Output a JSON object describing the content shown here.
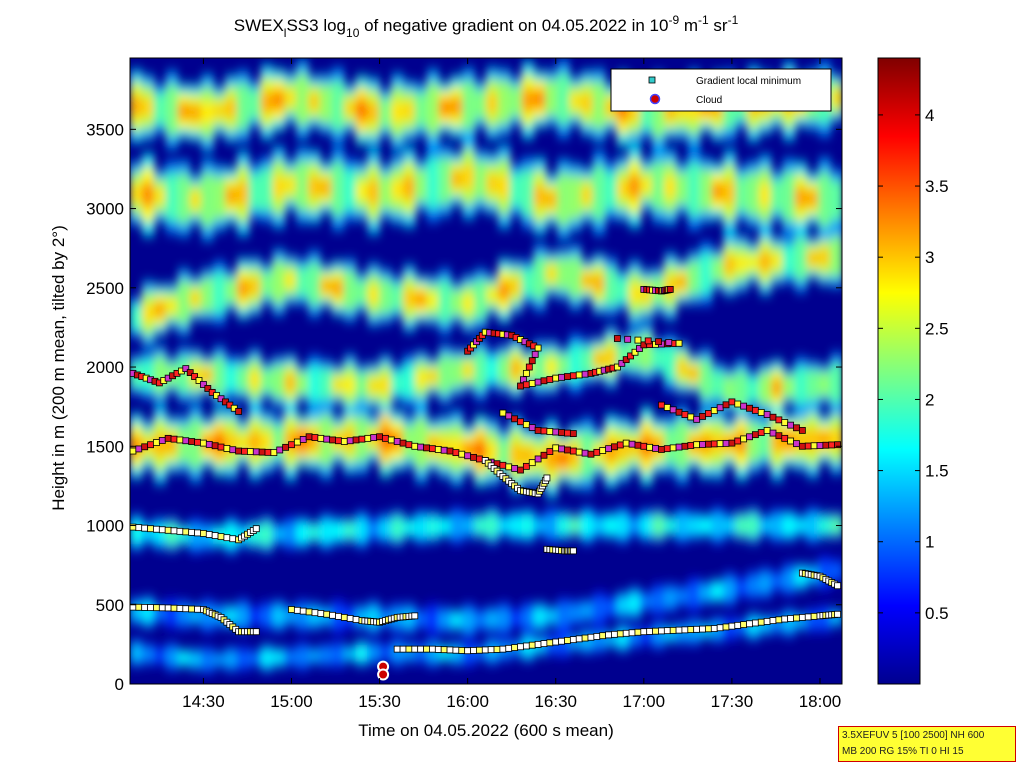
{
  "chart_data": {
    "type": "heatmap",
    "title": {
      "p1": "SWEX",
      "p1_sub": "l",
      "p2": "SS3 log",
      "p2_sub": "10",
      "p3": " of negative gradient on 04.05.2022 in 10",
      "p3_sup": "-9",
      "p4": " m",
      "p4_sup": "-1",
      "p5": " sr",
      "p5_sup": "-1"
    },
    "xlabel": "Time on 04.05.2022 (600 s mean)",
    "ylabel": "Height in m (200 m mean, tilted by 2°)",
    "xlim_hours": [
      14.0833,
      18.125
    ],
    "ylim": [
      0,
      3950
    ],
    "x_ticks": [
      {
        "value": 14.5,
        "label": "14:30"
      },
      {
        "value": 15.0,
        "label": "15:00"
      },
      {
        "value": 15.5,
        "label": "15:30"
      },
      {
        "value": 16.0,
        "label": "16:00"
      },
      {
        "value": 16.5,
        "label": "16:30"
      },
      {
        "value": 17.0,
        "label": "17:00"
      },
      {
        "value": 17.5,
        "label": "17:30"
      },
      {
        "value": 18.0,
        "label": "18:00"
      }
    ],
    "y_ticks": [
      0,
      500,
      1000,
      1500,
      2000,
      2500,
      3000,
      3500
    ],
    "colorbar": {
      "range": [
        0,
        4.4
      ],
      "ticks": [
        0.5,
        1,
        1.5,
        2,
        2.5,
        3,
        3.5,
        4
      ],
      "colormap": "jet"
    },
    "legend": {
      "position": "top-right",
      "entries": [
        {
          "label": "Gradient local minimum",
          "marker": "square",
          "color": "#33cccc"
        },
        {
          "label": "Cloud",
          "marker": "circle",
          "color": "#cc0000"
        }
      ]
    },
    "layers": [
      {
        "heights": [
          [
            14.08,
            460
          ],
          [
            14.5,
            430
          ],
          [
            15.0,
            430
          ],
          [
            15.5,
            420
          ],
          [
            16.0,
            400
          ],
          [
            16.5,
            430
          ],
          [
            17.0,
            520
          ],
          [
            17.5,
            600
          ],
          [
            18.12,
            720
          ]
        ],
        "thickness": 110,
        "level": 1.2
      },
      {
        "heights": [
          [
            14.08,
            200
          ],
          [
            14.5,
            150
          ],
          [
            15.0,
            170
          ],
          [
            15.5,
            200
          ],
          [
            16.0,
            190
          ],
          [
            16.5,
            250
          ],
          [
            17.0,
            300
          ],
          [
            17.5,
            350
          ],
          [
            18.12,
            420
          ]
        ],
        "thickness": 90,
        "level": 1.25
      },
      {
        "heights": [
          [
            14.08,
            960
          ],
          [
            14.5,
            930
          ],
          [
            15.0,
            950
          ],
          [
            15.5,
            980
          ],
          [
            16.0,
            1000
          ],
          [
            16.5,
            1000
          ],
          [
            17.0,
            1000
          ],
          [
            17.5,
            1000
          ],
          [
            18.12,
            1000
          ]
        ],
        "thickness": 120,
        "level": 1.6
      },
      {
        "heights": [
          [
            14.08,
            1500
          ],
          [
            14.5,
            1520
          ],
          [
            15.0,
            1530
          ],
          [
            15.5,
            1550
          ],
          [
            16.0,
            1480
          ],
          [
            16.5,
            1420
          ],
          [
            17.0,
            1500
          ],
          [
            17.5,
            1520
          ],
          [
            18.12,
            1550
          ]
        ],
        "thickness": 260,
        "level": 2.5
      },
      {
        "heights": [
          [
            14.08,
            1950
          ],
          [
            14.5,
            1950
          ],
          [
            15.0,
            1900
          ],
          [
            15.5,
            1880
          ],
          [
            16.0,
            1980
          ],
          [
            16.5,
            2000
          ],
          [
            17.0,
            2100
          ],
          [
            17.5,
            1850
          ],
          [
            18.12,
            1900
          ]
        ],
        "thickness": 200,
        "level": 2.2
      },
      {
        "heights": [
          [
            14.08,
            2300
          ],
          [
            14.5,
            2450
          ],
          [
            15.0,
            2550
          ],
          [
            15.5,
            2450
          ],
          [
            16.0,
            2400
          ],
          [
            16.5,
            2600
          ],
          [
            17.0,
            2450
          ],
          [
            17.5,
            2650
          ],
          [
            18.12,
            2700
          ]
        ],
        "thickness": 220,
        "level": 2.3
      },
      {
        "heights": [
          [
            14.08,
            3100
          ],
          [
            14.5,
            3050
          ],
          [
            15.0,
            3150
          ],
          [
            15.5,
            3100
          ],
          [
            16.0,
            3200
          ],
          [
            16.5,
            3050
          ],
          [
            17.0,
            3150
          ],
          [
            17.5,
            3100
          ],
          [
            18.12,
            3050
          ]
        ],
        "thickness": 280,
        "level": 2.3
      },
      {
        "heights": [
          [
            14.08,
            3650
          ],
          [
            14.5,
            3600
          ],
          [
            15.0,
            3700
          ],
          [
            15.5,
            3600
          ],
          [
            16.0,
            3650
          ],
          [
            16.5,
            3700
          ],
          [
            17.0,
            3600
          ],
          [
            17.5,
            3650
          ],
          [
            18.12,
            3700
          ]
        ],
        "thickness": 260,
        "level": 2.4
      }
    ],
    "minima_series": [
      {
        "points": [
          [
            14.1,
            485
          ],
          [
            14.3,
            480
          ],
          [
            14.5,
            470
          ],
          [
            14.6,
            420
          ],
          [
            14.7,
            330
          ],
          [
            14.8,
            330
          ]
        ],
        "color": "white"
      },
      {
        "points": [
          [
            15.0,
            470
          ],
          [
            15.2,
            440
          ],
          [
            15.4,
            400
          ],
          [
            15.5,
            390
          ],
          [
            15.6,
            420
          ],
          [
            15.7,
            430
          ]
        ],
        "color": "white"
      },
      {
        "points": [
          [
            15.6,
            220
          ],
          [
            15.8,
            220
          ],
          [
            16.0,
            210
          ],
          [
            16.2,
            220
          ],
          [
            16.4,
            250
          ],
          [
            16.6,
            280
          ],
          [
            16.8,
            310
          ],
          [
            17.0,
            330
          ],
          [
            17.2,
            340
          ],
          [
            17.4,
            350
          ],
          [
            17.6,
            380
          ],
          [
            17.8,
            410
          ],
          [
            18.0,
            430
          ],
          [
            18.1,
            440
          ]
        ],
        "color": "white"
      },
      {
        "points": [
          [
            17.9,
            700
          ],
          [
            18.0,
            680
          ],
          [
            18.1,
            620
          ]
        ],
        "color": "white"
      },
      {
        "points": [
          [
            14.1,
            990
          ],
          [
            14.3,
            970
          ],
          [
            14.5,
            950
          ],
          [
            14.7,
            910
          ],
          [
            14.8,
            980
          ]
        ],
        "color": "white"
      },
      {
        "points": [
          [
            16.45,
            850
          ],
          [
            16.55,
            840
          ],
          [
            16.6,
            840
          ]
        ],
        "color": "white"
      },
      {
        "points": [
          [
            14.1,
            1470
          ],
          [
            14.3,
            1550
          ],
          [
            14.5,
            1520
          ],
          [
            14.7,
            1470
          ],
          [
            14.9,
            1460
          ],
          [
            15.1,
            1560
          ],
          [
            15.3,
            1530
          ],
          [
            15.5,
            1560
          ],
          [
            15.7,
            1500
          ],
          [
            15.9,
            1470
          ],
          [
            16.1,
            1410
          ],
          [
            16.3,
            1350
          ],
          [
            16.5,
            1490
          ],
          [
            16.7,
            1450
          ],
          [
            16.9,
            1520
          ],
          [
            17.1,
            1480
          ],
          [
            17.3,
            1510
          ],
          [
            17.5,
            1520
          ],
          [
            17.7,
            1600
          ],
          [
            17.9,
            1500
          ],
          [
            18.1,
            1510
          ]
        ],
        "color": "red"
      },
      {
        "points": [
          [
            14.1,
            1960
          ],
          [
            14.25,
            1900
          ],
          [
            14.4,
            1990
          ],
          [
            14.55,
            1840
          ],
          [
            14.7,
            1720
          ]
        ],
        "color": "red"
      },
      {
        "points": [
          [
            16.0,
            2100
          ],
          [
            16.1,
            2220
          ],
          [
            16.25,
            2200
          ],
          [
            16.4,
            2120
          ],
          [
            16.3,
            1880
          ],
          [
            16.5,
            1930
          ],
          [
            16.7,
            1960
          ],
          [
            16.85,
            2000
          ],
          [
            17.0,
            2140
          ],
          [
            17.2,
            2150
          ],
          [
            16.85,
            2180
          ]
        ],
        "color": "red"
      },
      {
        "points": [
          [
            17.1,
            1760
          ],
          [
            17.3,
            1670
          ],
          [
            17.5,
            1780
          ],
          [
            17.7,
            1700
          ],
          [
            17.9,
            1600
          ]
        ],
        "color": "red"
      },
      {
        "points": [
          [
            16.2,
            1710
          ],
          [
            16.4,
            1600
          ],
          [
            16.6,
            1580
          ]
        ],
        "color": "red"
      },
      {
        "points": [
          [
            17.0,
            2490
          ],
          [
            17.1,
            2480
          ],
          [
            17.15,
            2490
          ]
        ],
        "color": "red"
      },
      {
        "points": [
          [
            16.1,
            1410
          ],
          [
            16.2,
            1310
          ],
          [
            16.3,
            1220
          ],
          [
            16.4,
            1200
          ],
          [
            16.45,
            1300
          ]
        ],
        "color": "white"
      }
    ],
    "clouds": [
      {
        "x": 15.52,
        "y": 110
      },
      {
        "x": 15.52,
        "y": 60
      }
    ]
  },
  "info_box": {
    "line1": "3.5XEFUV 5 [100 2500] NH 600",
    "line2": "MB 200 RG 15% TI 0 HI 15"
  }
}
